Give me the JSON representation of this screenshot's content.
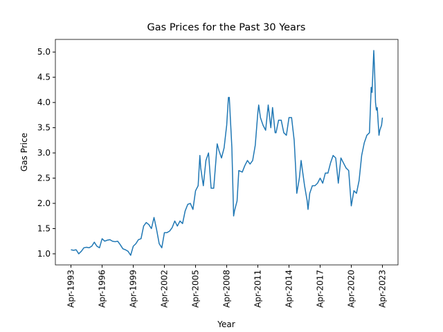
{
  "chart_data": {
    "type": "line",
    "title": "Gas Prices for the Past 30 Years",
    "x_label": "Year",
    "y_label": "Gas Price",
    "x": [
      "1993-04",
      "1993-07",
      "1993-10",
      "1994-01",
      "1994-04",
      "1994-07",
      "1994-10",
      "1995-01",
      "1995-04",
      "1995-07",
      "1995-10",
      "1996-01",
      "1996-04",
      "1996-07",
      "1996-10",
      "1997-01",
      "1997-04",
      "1997-07",
      "1997-10",
      "1998-01",
      "1998-04",
      "1998-07",
      "1998-10",
      "1999-01",
      "1999-04",
      "1999-07",
      "1999-10",
      "2000-01",
      "2000-04",
      "2000-07",
      "2000-10",
      "2001-01",
      "2001-04",
      "2001-07",
      "2001-10",
      "2002-01",
      "2002-04",
      "2002-07",
      "2002-10",
      "2003-01",
      "2003-04",
      "2003-07",
      "2003-10",
      "2004-01",
      "2004-04",
      "2004-07",
      "2004-10",
      "2005-01",
      "2005-04",
      "2005-07",
      "2005-09",
      "2005-10",
      "2006-01",
      "2006-04",
      "2006-07",
      "2006-10",
      "2007-01",
      "2007-04",
      "2007-05",
      "2007-07",
      "2007-10",
      "2008-01",
      "2008-04",
      "2008-06",
      "2008-07",
      "2008-10",
      "2008-12",
      "2009-01",
      "2009-04",
      "2009-06",
      "2009-10",
      "2010-01",
      "2010-04",
      "2010-07",
      "2010-10",
      "2011-01",
      "2011-04",
      "2011-05",
      "2011-07",
      "2011-10",
      "2012-01",
      "2012-04",
      "2012-07",
      "2012-09",
      "2012-12",
      "2013-01",
      "2013-04",
      "2013-07",
      "2013-10",
      "2014-01",
      "2014-04",
      "2014-07",
      "2014-10",
      "2014-12",
      "2015-01",
      "2015-04",
      "2015-06",
      "2015-10",
      "2016-01",
      "2016-02",
      "2016-04",
      "2016-07",
      "2016-10",
      "2017-01",
      "2017-04",
      "2017-07",
      "2017-10",
      "2018-01",
      "2018-04",
      "2018-07",
      "2018-10",
      "2019-01",
      "2019-04",
      "2019-07",
      "2019-10",
      "2020-01",
      "2020-04",
      "2020-07",
      "2020-10",
      "2021-01",
      "2021-04",
      "2021-07",
      "2021-10",
      "2022-01",
      "2022-03",
      "2022-04",
      "2022-06",
      "2022-07",
      "2022-08",
      "2022-09",
      "2022-10",
      "2022-12",
      "2023-01",
      "2023-03",
      "2023-04"
    ],
    "series": [
      {
        "name": "Gas Price",
        "color": "#1f77b4",
        "values": [
          1.08,
          1.07,
          1.08,
          1.0,
          1.05,
          1.12,
          1.13,
          1.12,
          1.15,
          1.23,
          1.15,
          1.12,
          1.3,
          1.25,
          1.27,
          1.28,
          1.25,
          1.24,
          1.25,
          1.18,
          1.1,
          1.08,
          1.05,
          0.97,
          1.15,
          1.2,
          1.28,
          1.3,
          1.55,
          1.62,
          1.58,
          1.5,
          1.72,
          1.48,
          1.2,
          1.12,
          1.42,
          1.42,
          1.45,
          1.52,
          1.65,
          1.55,
          1.65,
          1.6,
          1.85,
          1.98,
          2.0,
          1.88,
          2.25,
          2.35,
          2.95,
          2.7,
          2.35,
          2.85,
          3.0,
          2.3,
          2.3,
          2.95,
          3.18,
          3.05,
          2.9,
          3.1,
          3.55,
          4.1,
          4.1,
          3.1,
          1.75,
          1.85,
          2.05,
          2.65,
          2.62,
          2.75,
          2.85,
          2.78,
          2.85,
          3.15,
          3.8,
          3.95,
          3.7,
          3.55,
          3.45,
          3.95,
          3.5,
          3.9,
          3.4,
          3.4,
          3.65,
          3.65,
          3.4,
          3.35,
          3.7,
          3.7,
          3.25,
          2.6,
          2.2,
          2.5,
          2.85,
          2.35,
          2.05,
          1.88,
          2.2,
          2.35,
          2.35,
          2.4,
          2.5,
          2.4,
          2.6,
          2.6,
          2.8,
          2.95,
          2.9,
          2.4,
          2.9,
          2.8,
          2.7,
          2.65,
          1.95,
          2.25,
          2.2,
          2.45,
          2.95,
          3.2,
          3.35,
          3.4,
          4.3,
          4.2,
          5.03,
          4.6,
          4.0,
          3.85,
          3.9,
          3.35,
          3.45,
          3.55,
          3.7
        ]
      }
    ],
    "xlim": [
      "1991-10",
      "2024-10"
    ],
    "xticks": [
      {
        "value": "1993-04",
        "label": "Apr-1993"
      },
      {
        "value": "1996-04",
        "label": "Apr-1996"
      },
      {
        "value": "1999-04",
        "label": "Apr-1999"
      },
      {
        "value": "2002-04",
        "label": "Apr-2002"
      },
      {
        "value": "2005-04",
        "label": "Apr-2005"
      },
      {
        "value": "2008-04",
        "label": "Apr-2008"
      },
      {
        "value": "2011-04",
        "label": "Apr-2011"
      },
      {
        "value": "2014-04",
        "label": "Apr-2014"
      },
      {
        "value": "2017-04",
        "label": "Apr-2017"
      },
      {
        "value": "2020-04",
        "label": "Apr-2020"
      },
      {
        "value": "2023-04",
        "label": "Apr-2023"
      }
    ],
    "ylim": [
      0.78,
      5.25
    ],
    "yticks": [
      {
        "value": 1,
        "label": "1.0"
      },
      1.5,
      {
        "value": 2,
        "label": "2.0"
      },
      2.5,
      {
        "value": 3,
        "label": "3.0"
      },
      3.5,
      {
        "value": 4,
        "label": "4.0"
      },
      4.5,
      {
        "value": 5,
        "label": "5.0"
      }
    ]
  }
}
